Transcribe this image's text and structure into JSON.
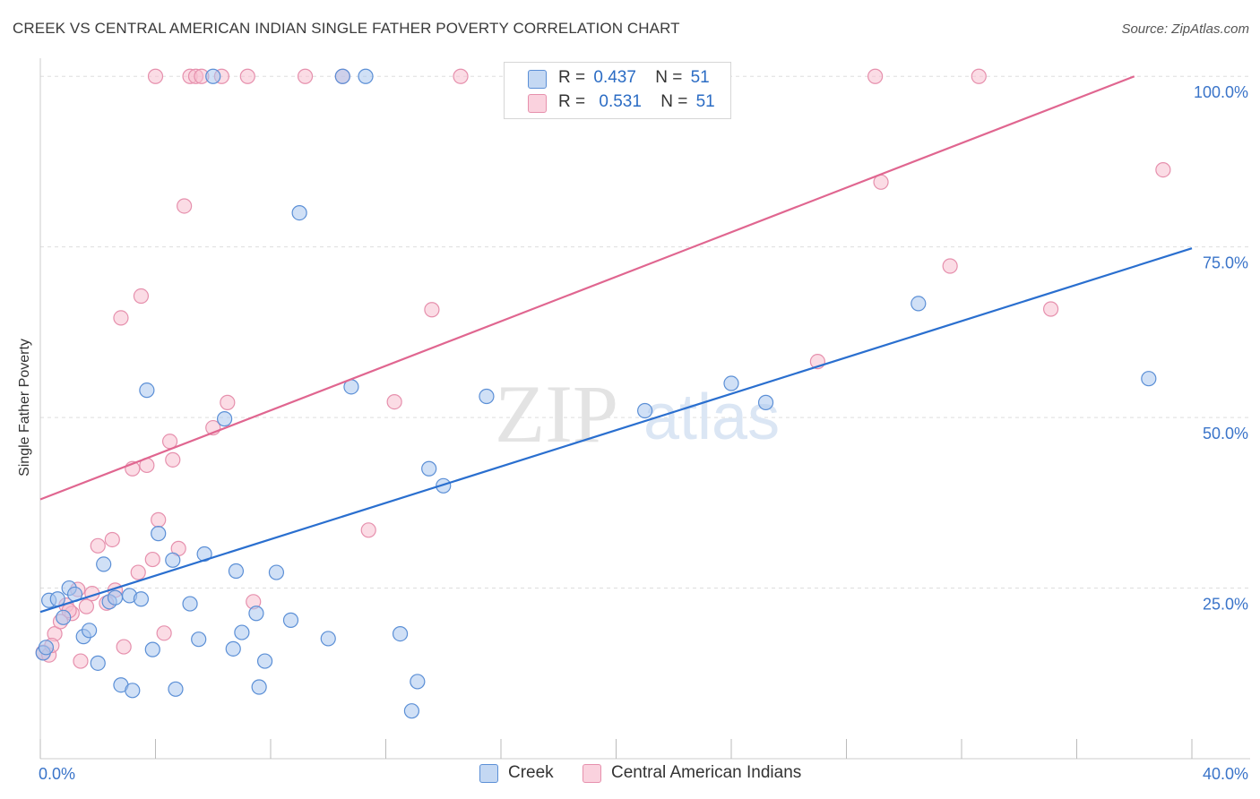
{
  "header": {
    "title": "CREEK VS CENTRAL AMERICAN INDIAN SINGLE FATHER POVERTY CORRELATION CHART",
    "source": "Source: ZipAtlas.com"
  },
  "watermark": {
    "zip": "ZIP",
    "atlas": "atlas"
  },
  "legend": {
    "creek": {
      "r_label": "R =",
      "r_value": "0.437",
      "n_label": "N =",
      "n_value": "51"
    },
    "cai": {
      "r_label": "R =",
      "r_value": "0.531",
      "n_label": "N =",
      "n_value": "51"
    }
  },
  "colors": {
    "creek_fill": "#a9c6ee",
    "creek_stroke": "#5b8fd6",
    "creek_line": "#2a6fcf",
    "cai_fill": "#f7bfcf",
    "cai_stroke": "#e690ad",
    "cai_line": "#e06690",
    "tick_label": "#3a74c9",
    "grid": "#dddddd"
  },
  "chart_data": {
    "type": "scatter",
    "title": "CREEK VS CENTRAL AMERICAN INDIAN SINGLE FATHER POVERTY CORRELATION CHART",
    "xlabel": "",
    "ylabel": "Single Father Poverty",
    "xlim": [
      0,
      40
    ],
    "ylim": [
      0,
      102
    ],
    "x_tick_labels": [
      {
        "value": 0,
        "label": "0.0%"
      },
      {
        "value": 40,
        "label": "40.0%"
      }
    ],
    "y_tick_labels": [
      {
        "value": 25,
        "label": "25.0%"
      },
      {
        "value": 50,
        "label": "50.0%"
      },
      {
        "value": 75,
        "label": "75.0%"
      },
      {
        "value": 100,
        "label": "100.0%"
      }
    ],
    "grid": "horizontal dashed",
    "legend_position": "top-center",
    "series": [
      {
        "name": "Creek",
        "trend": {
          "x": [
            0,
            40
          ],
          "y": [
            21.5,
            74.8
          ]
        },
        "points": [
          [
            0.1,
            15.5
          ],
          [
            0.3,
            23.2
          ],
          [
            0.6,
            23.4
          ],
          [
            0.8,
            20.7
          ],
          [
            1.0,
            25.0
          ],
          [
            1.2,
            24.1
          ],
          [
            1.5,
            17.9
          ],
          [
            1.7,
            18.8
          ],
          [
            2.0,
            14.0
          ],
          [
            2.2,
            28.5
          ],
          [
            2.4,
            23.0
          ],
          [
            2.6,
            23.6
          ],
          [
            2.8,
            10.8
          ],
          [
            3.1,
            23.9
          ],
          [
            3.2,
            10.0
          ],
          [
            3.5,
            23.4
          ],
          [
            3.7,
            54.0
          ],
          [
            3.9,
            16.0
          ],
          [
            4.1,
            33.0
          ],
          [
            4.6,
            29.1
          ],
          [
            4.7,
            10.2
          ],
          [
            5.2,
            22.7
          ],
          [
            5.5,
            17.5
          ],
          [
            5.7,
            30.0
          ],
          [
            6.0,
            100.0
          ],
          [
            6.4,
            49.8
          ],
          [
            6.7,
            16.1
          ],
          [
            6.8,
            27.5
          ],
          [
            7.0,
            18.5
          ],
          [
            7.5,
            21.3
          ],
          [
            7.6,
            10.5
          ],
          [
            7.8,
            14.3
          ],
          [
            8.2,
            27.3
          ],
          [
            8.7,
            20.3
          ],
          [
            9.0,
            80.0
          ],
          [
            10.0,
            17.6
          ],
          [
            10.5,
            100.0
          ],
          [
            10.8,
            54.5
          ],
          [
            11.3,
            100.0
          ],
          [
            12.5,
            18.3
          ],
          [
            12.9,
            7.0
          ],
          [
            13.1,
            11.3
          ],
          [
            13.5,
            42.5
          ],
          [
            14.0,
            40.0
          ],
          [
            15.5,
            53.1
          ],
          [
            21.0,
            51.0
          ],
          [
            24.0,
            55.0
          ],
          [
            25.2,
            52.2
          ],
          [
            30.5,
            66.7
          ],
          [
            38.5,
            55.7
          ],
          [
            0.2,
            16.3
          ]
        ]
      },
      {
        "name": "Central American Indians",
        "trend": {
          "x": [
            0,
            38.0
          ],
          "y": [
            38.0,
            100.0
          ]
        },
        "points": [
          [
            0.1,
            15.6
          ],
          [
            0.5,
            18.3
          ],
          [
            0.7,
            20.1
          ],
          [
            0.9,
            22.5
          ],
          [
            1.1,
            21.3
          ],
          [
            1.3,
            24.8
          ],
          [
            1.4,
            14.3
          ],
          [
            1.6,
            22.3
          ],
          [
            1.8,
            24.2
          ],
          [
            2.0,
            31.2
          ],
          [
            2.3,
            22.8
          ],
          [
            2.5,
            32.1
          ],
          [
            2.6,
            24.7
          ],
          [
            2.8,
            64.6
          ],
          [
            2.9,
            16.4
          ],
          [
            3.2,
            42.5
          ],
          [
            3.4,
            27.3
          ],
          [
            3.5,
            67.8
          ],
          [
            3.7,
            43.0
          ],
          [
            3.9,
            29.2
          ],
          [
            4.0,
            100.0
          ],
          [
            4.1,
            35.0
          ],
          [
            4.3,
            18.4
          ],
          [
            4.5,
            46.5
          ],
          [
            4.6,
            43.8
          ],
          [
            4.8,
            30.8
          ],
          [
            5.0,
            81.0
          ],
          [
            5.2,
            100.0
          ],
          [
            5.4,
            100.0
          ],
          [
            5.6,
            100.0
          ],
          [
            6.0,
            48.5
          ],
          [
            6.3,
            100.0
          ],
          [
            6.5,
            52.2
          ],
          [
            7.2,
            100.0
          ],
          [
            7.4,
            23.0
          ],
          [
            9.2,
            100.0
          ],
          [
            10.5,
            100.0
          ],
          [
            11.4,
            33.5
          ],
          [
            12.3,
            52.3
          ],
          [
            13.6,
            65.8
          ],
          [
            14.6,
            100.0
          ],
          [
            27.0,
            58.2
          ],
          [
            29.0,
            100.0
          ],
          [
            29.2,
            84.5
          ],
          [
            31.6,
            72.2
          ],
          [
            32.6,
            100.0
          ],
          [
            35.1,
            65.9
          ],
          [
            39.0,
            86.3
          ],
          [
            0.3,
            15.2
          ],
          [
            0.4,
            16.6
          ],
          [
            1.0,
            21.7
          ]
        ]
      }
    ]
  },
  "bottom_legend": {
    "creek_label": "Creek",
    "cai_label": "Central American Indians"
  }
}
